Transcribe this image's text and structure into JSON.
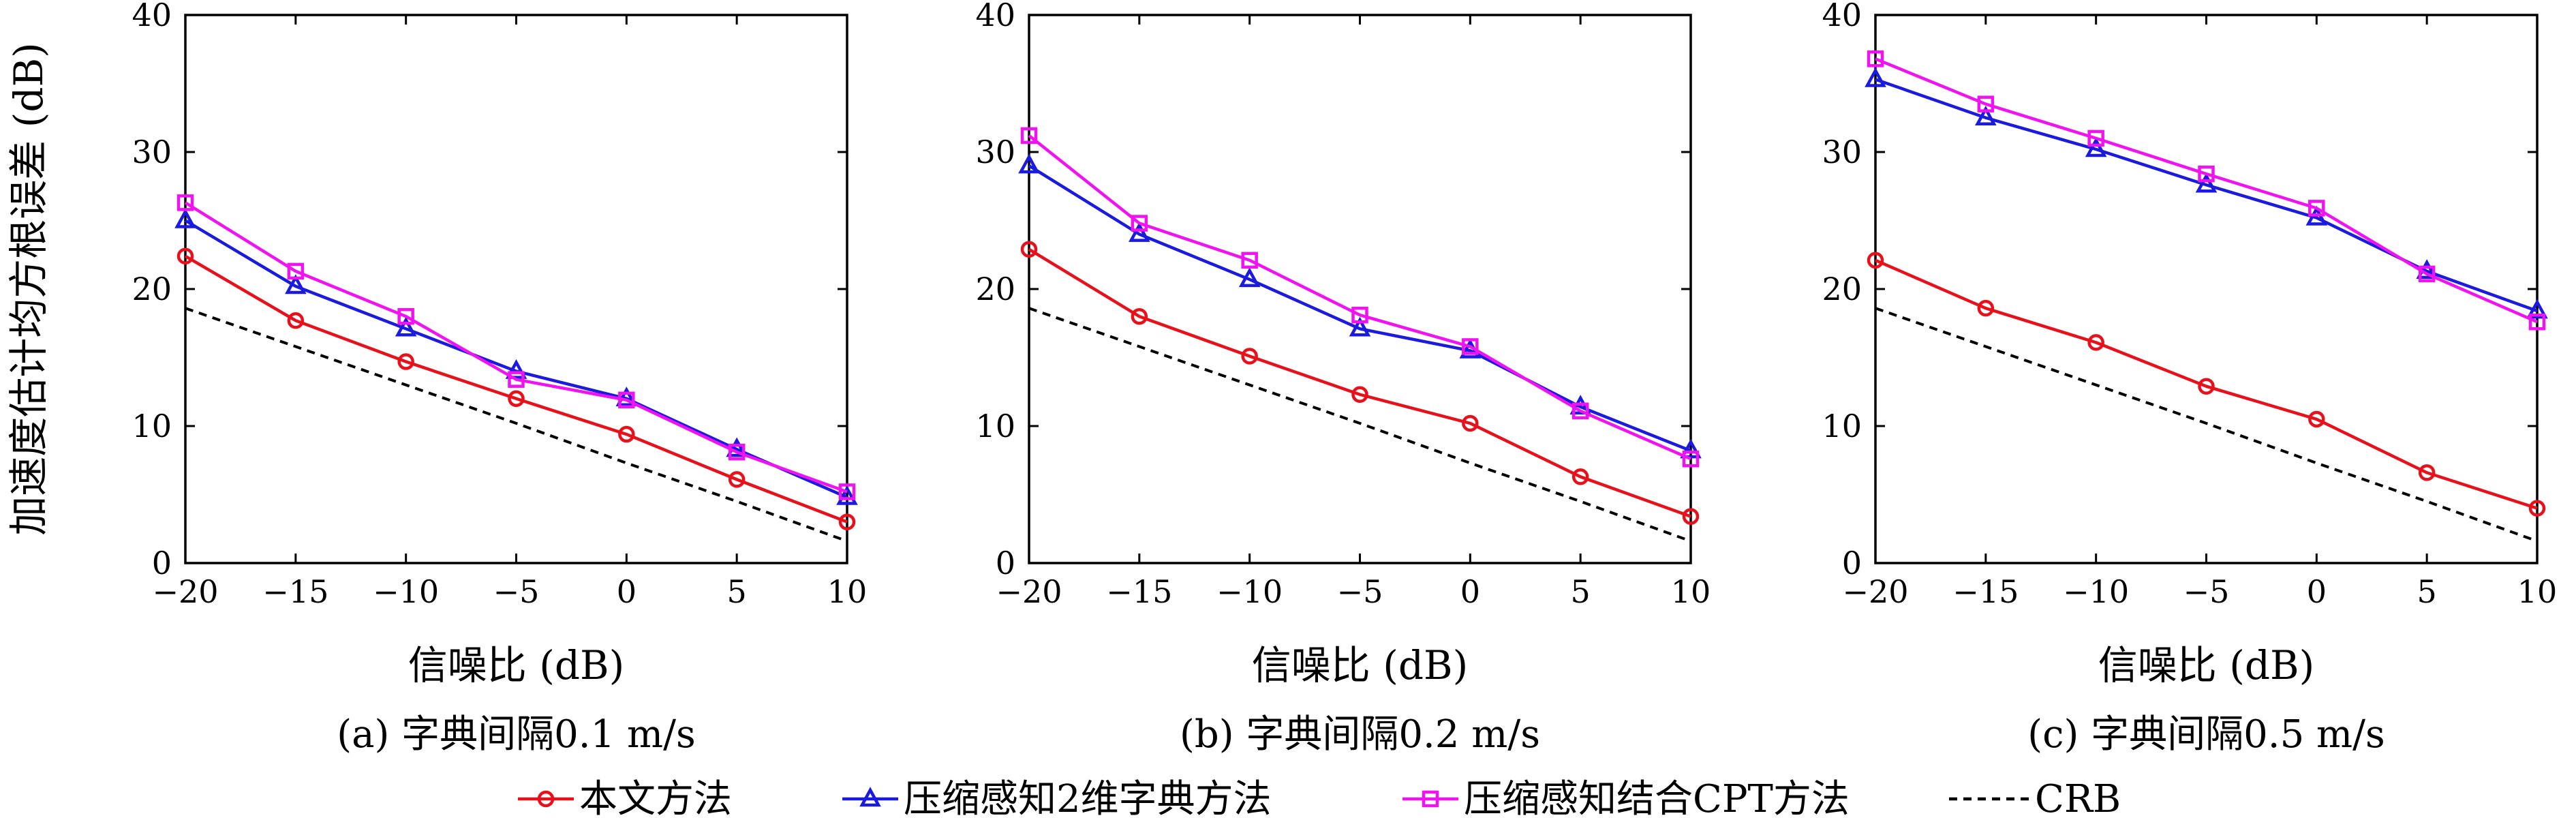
{
  "chart_data": [
    {
      "type": "line",
      "caption": "(a) 字典间隔0.1 m/s",
      "xlabel": "信噪比 (dB)",
      "ylabel": "加速度估计均方根误差 (dB)",
      "xlim": [
        -20,
        10
      ],
      "ylim": [
        0,
        40
      ],
      "xticks": [
        -20,
        -15,
        -10,
        -5,
        0,
        5,
        10
      ],
      "yticks": [
        0,
        10,
        20,
        30,
        40
      ],
      "x": [
        -20,
        -15,
        -10,
        -5,
        0,
        5,
        10
      ],
      "series": [
        {
          "key": "s1",
          "values": [
            22.4,
            17.7,
            14.7,
            12.0,
            9.4,
            6.1,
            3.0
          ]
        },
        {
          "key": "s2",
          "values": [
            25.0,
            20.2,
            17.1,
            14.0,
            12.0,
            8.3,
            4.8
          ]
        },
        {
          "key": "s3",
          "values": [
            26.3,
            21.3,
            18.0,
            13.4,
            11.9,
            8.1,
            5.2
          ]
        },
        {
          "key": "crb",
          "values": [
            18.6,
            15.8,
            13.0,
            10.2,
            7.3,
            4.5,
            1.6
          ]
        }
      ]
    },
    {
      "type": "line",
      "caption": "(b) 字典间隔0.2 m/s",
      "xlabel": "信噪比 (dB)",
      "ylabel": "",
      "xlim": [
        -20,
        10
      ],
      "ylim": [
        0,
        40
      ],
      "xticks": [
        -20,
        -15,
        -10,
        -5,
        0,
        5,
        10
      ],
      "yticks": [
        0,
        10,
        20,
        30,
        40
      ],
      "x": [
        -20,
        -15,
        -10,
        -5,
        0,
        5,
        10
      ],
      "series": [
        {
          "key": "s1",
          "values": [
            22.9,
            18.0,
            15.1,
            12.3,
            10.2,
            6.3,
            3.4
          ]
        },
        {
          "key": "s2",
          "values": [
            29.0,
            24.0,
            20.7,
            17.1,
            15.5,
            11.4,
            8.2
          ]
        },
        {
          "key": "s3",
          "values": [
            31.2,
            24.8,
            22.1,
            18.1,
            15.8,
            11.1,
            7.6
          ]
        },
        {
          "key": "crb",
          "values": [
            18.6,
            15.8,
            13.0,
            10.2,
            7.3,
            4.5,
            1.6
          ]
        }
      ]
    },
    {
      "type": "line",
      "caption": "(c) 字典间隔0.5 m/s",
      "xlabel": "信噪比 (dB)",
      "ylabel": "",
      "xlim": [
        -20,
        10
      ],
      "ylim": [
        0,
        40
      ],
      "xticks": [
        -20,
        -15,
        -10,
        -5,
        0,
        5,
        10
      ],
      "yticks": [
        0,
        10,
        20,
        30,
        40
      ],
      "x": [
        -20,
        -15,
        -10,
        -5,
        0,
        5,
        10
      ],
      "series": [
        {
          "key": "s1",
          "values": [
            22.1,
            18.6,
            16.1,
            12.9,
            10.5,
            6.6,
            4.0
          ]
        },
        {
          "key": "s2",
          "values": [
            35.3,
            32.5,
            30.2,
            27.6,
            25.2,
            21.3,
            18.4
          ]
        },
        {
          "key": "s3",
          "values": [
            36.8,
            33.5,
            31.0,
            28.4,
            25.9,
            21.1,
            17.6
          ]
        },
        {
          "key": "crb",
          "values": [
            18.6,
            15.8,
            13.0,
            10.2,
            7.3,
            4.5,
            1.6
          ]
        }
      ]
    }
  ],
  "legend": {
    "placement": "bottom-center",
    "items": [
      {
        "key": "s1",
        "name": "本文方法",
        "color": "#e8101a",
        "marker": "circle",
        "dash": "none"
      },
      {
        "key": "s2",
        "name": "压缩感知2维字典方法",
        "color": "#1a1ae0",
        "marker": "triangle",
        "dash": "none"
      },
      {
        "key": "s3",
        "name": "压缩感知结合CPT方法",
        "color": "#f012f0",
        "marker": "square",
        "dash": "none"
      },
      {
        "key": "crb",
        "name": "CRB",
        "color": "#000000",
        "marker": "none",
        "dash": "12,9"
      }
    ]
  }
}
